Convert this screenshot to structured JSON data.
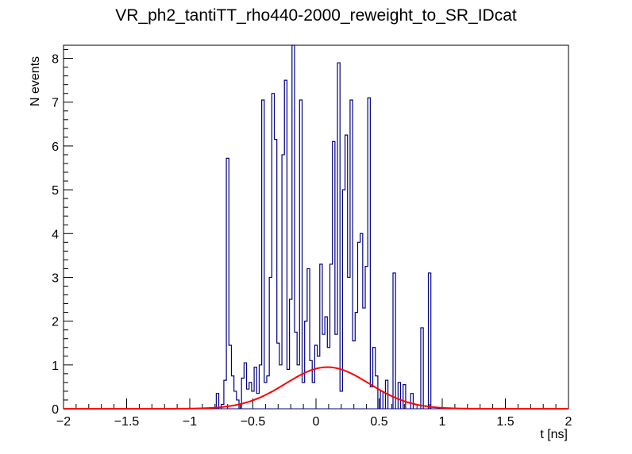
{
  "chart_data": {
    "type": "histogram",
    "title": "VR_ph2_tantiTT_rho440-2000_reweight_to_SR_IDcat",
    "xlabel": "t [ns]",
    "ylabel": "N events",
    "xlim": [
      -2,
      2
    ],
    "ylim": [
      0,
      8.3
    ],
    "x_ticks": [
      -2,
      -1.5,
      -1,
      -0.5,
      0,
      0.5,
      1,
      1.5,
      2
    ],
    "x_tick_labels": [
      "−2",
      "−1.5",
      "−1",
      "−0.5",
      "0",
      "0.5",
      "1",
      "1.5",
      "2"
    ],
    "y_ticks": [
      0,
      1,
      2,
      3,
      4,
      5,
      6,
      7,
      8
    ],
    "y_tick_labels": [
      "0",
      "1",
      "2",
      "3",
      "4",
      "5",
      "6",
      "7",
      "8"
    ],
    "bin_width": 0.02,
    "series": [
      {
        "name": "data",
        "color": "#000080",
        "style": "step",
        "bins": [
          {
            "x": -0.78,
            "y": 0.35
          },
          {
            "x": -0.74,
            "y": 0.1
          },
          {
            "x": -0.72,
            "y": 0.65
          },
          {
            "x": -0.7,
            "y": 5.72
          },
          {
            "x": -0.68,
            "y": 1.45
          },
          {
            "x": -0.66,
            "y": 0.75
          },
          {
            "x": -0.64,
            "y": 0.4
          },
          {
            "x": -0.62,
            "y": 0.2
          },
          {
            "x": -0.58,
            "y": 0.7
          },
          {
            "x": -0.56,
            "y": 1.05
          },
          {
            "x": -0.54,
            "y": 0.45
          },
          {
            "x": -0.52,
            "y": 0.6
          },
          {
            "x": -0.5,
            "y": 0.4
          },
          {
            "x": -0.48,
            "y": 0.95
          },
          {
            "x": -0.46,
            "y": 0.35
          },
          {
            "x": -0.44,
            "y": 1.0
          },
          {
            "x": -0.42,
            "y": 7.05
          },
          {
            "x": -0.4,
            "y": 0.6
          },
          {
            "x": -0.38,
            "y": 0.75
          },
          {
            "x": -0.36,
            "y": 3.0
          },
          {
            "x": -0.34,
            "y": 7.2
          },
          {
            "x": -0.32,
            "y": 6.15
          },
          {
            "x": -0.3,
            "y": 1.5
          },
          {
            "x": -0.28,
            "y": 1.0
          },
          {
            "x": -0.26,
            "y": 5.8
          },
          {
            "x": -0.24,
            "y": 7.5
          },
          {
            "x": -0.22,
            "y": 0.9
          },
          {
            "x": -0.2,
            "y": 2.5
          },
          {
            "x": -0.18,
            "y": 8.3
          },
          {
            "x": -0.16,
            "y": 1.75
          },
          {
            "x": -0.14,
            "y": 1.0
          },
          {
            "x": -0.12,
            "y": 7.05
          },
          {
            "x": -0.1,
            "y": 0.6
          },
          {
            "x": -0.08,
            "y": 2.0
          },
          {
            "x": -0.06,
            "y": 3.2
          },
          {
            "x": -0.04,
            "y": 1.1
          },
          {
            "x": -0.02,
            "y": 0.6
          },
          {
            "x": 0.0,
            "y": 1.45
          },
          {
            "x": 0.02,
            "y": 1.2
          },
          {
            "x": 0.04,
            "y": 3.3
          },
          {
            "x": 0.06,
            "y": 1.7
          },
          {
            "x": 0.08,
            "y": 2.1
          },
          {
            "x": 0.1,
            "y": 1.4
          },
          {
            "x": 0.12,
            "y": 3.3
          },
          {
            "x": 0.14,
            "y": 6.1
          },
          {
            "x": 0.16,
            "y": 1.7
          },
          {
            "x": 0.18,
            "y": 7.9
          },
          {
            "x": 0.2,
            "y": 0.4
          },
          {
            "x": 0.22,
            "y": 5.0
          },
          {
            "x": 0.24,
            "y": 6.25
          },
          {
            "x": 0.26,
            "y": 3.0
          },
          {
            "x": 0.28,
            "y": 7.05
          },
          {
            "x": 0.3,
            "y": 1.55
          },
          {
            "x": 0.32,
            "y": 2.2
          },
          {
            "x": 0.34,
            "y": 3.8
          },
          {
            "x": 0.36,
            "y": 4.0
          },
          {
            "x": 0.38,
            "y": 2.3
          },
          {
            "x": 0.4,
            "y": 3.25
          },
          {
            "x": 0.42,
            "y": 7.1
          },
          {
            "x": 0.44,
            "y": 0.5
          },
          {
            "x": 0.46,
            "y": 1.4
          },
          {
            "x": 0.48,
            "y": 0.75
          },
          {
            "x": 0.52,
            "y": 0.4
          },
          {
            "x": 0.56,
            "y": 0.65
          },
          {
            "x": 0.62,
            "y": 3.1
          },
          {
            "x": 0.66,
            "y": 0.6
          },
          {
            "x": 0.7,
            "y": 0.55
          },
          {
            "x": 0.76,
            "y": 0.35
          },
          {
            "x": 0.84,
            "y": 1.85
          },
          {
            "x": 0.9,
            "y": 3.1
          }
        ]
      },
      {
        "name": "fit",
        "color": "#ff0000",
        "style": "gaussian",
        "amplitude": 0.95,
        "mean": 0.09,
        "sigma": 0.33
      }
    ]
  }
}
